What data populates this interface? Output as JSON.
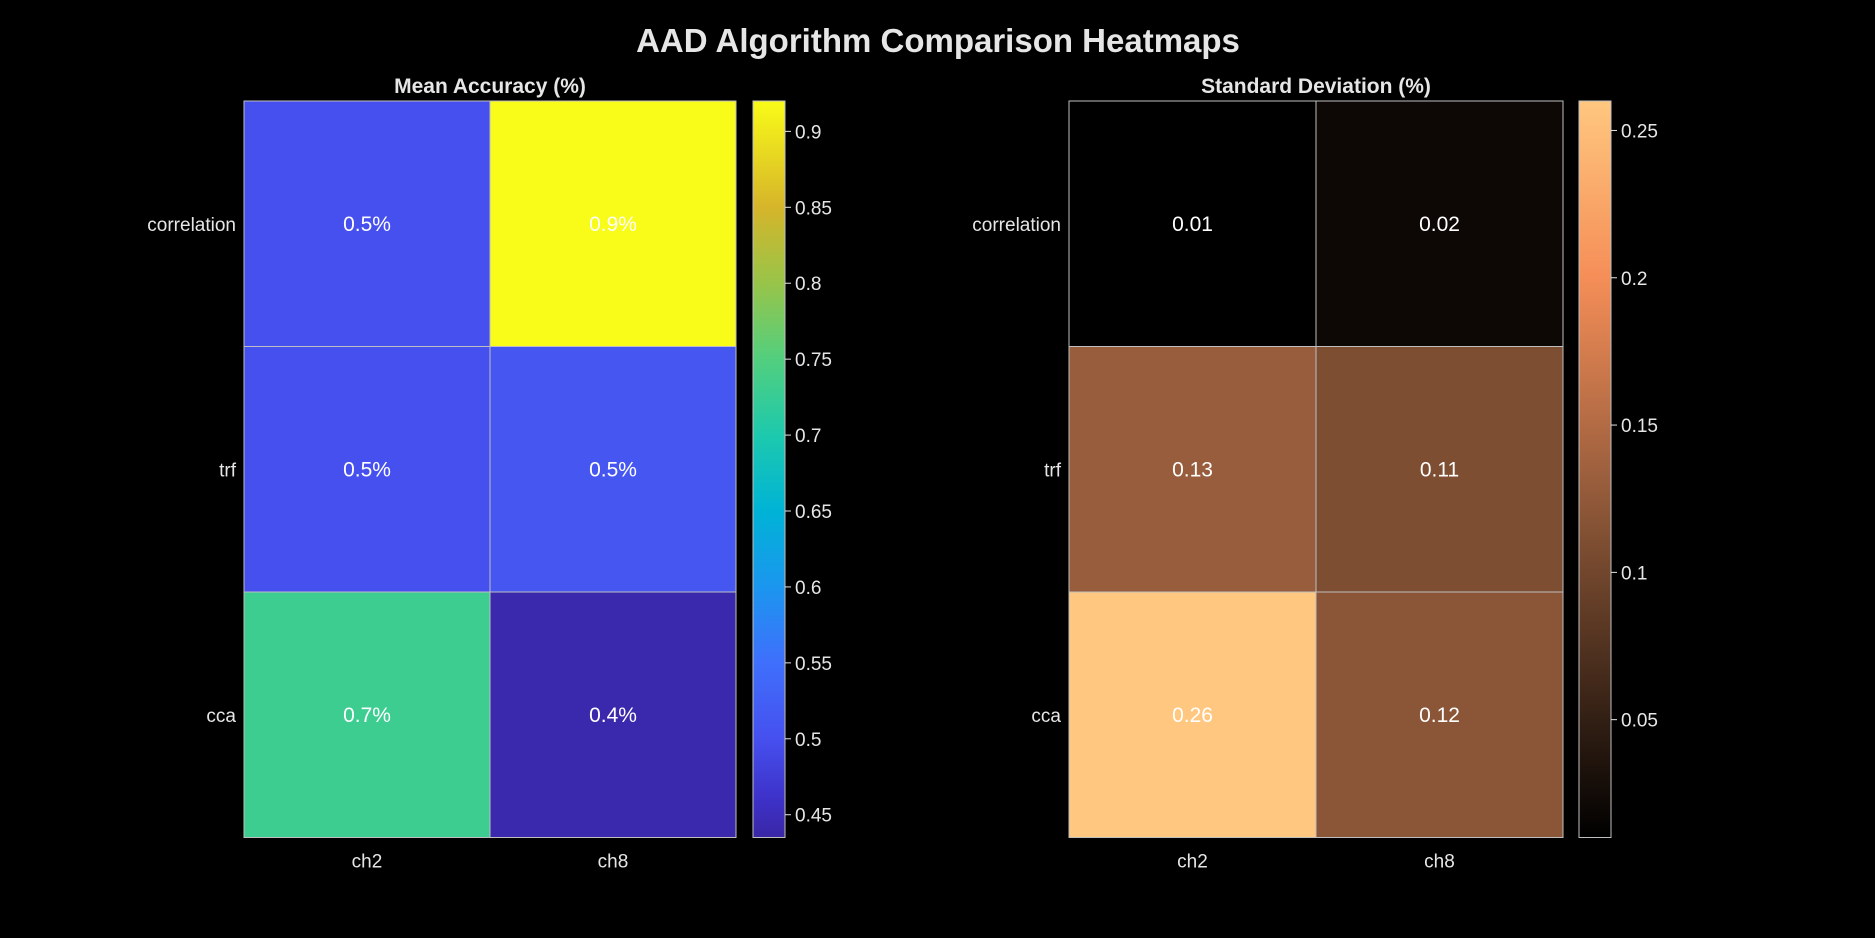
{
  "figure": {
    "title": "AAD Algorithm Comparison Heatmaps",
    "background": "#000000",
    "text_color": "#e6e6e6",
    "grid_line_color": "#bfbfbf"
  },
  "chart_data": [
    {
      "type": "heatmap",
      "title": "Mean Accuracy (%)",
      "rows": [
        "correlation",
        "trf",
        "cca"
      ],
      "columns": [
        "ch2",
        "ch8"
      ],
      "values": [
        [
          0.5,
          0.92
        ],
        [
          0.5,
          0.51
        ],
        [
          0.73,
          0.44
        ]
      ],
      "cell_labels": [
        [
          "0.5%",
          "0.9%"
        ],
        [
          "0.5%",
          "0.5%"
        ],
        [
          "0.7%",
          "0.4%"
        ]
      ],
      "colormap": "plasma-like",
      "color_range": [
        0.435,
        0.92
      ],
      "colorbar_ticks": [
        0.45,
        0.5,
        0.55,
        0.6,
        0.65,
        0.7,
        0.75,
        0.8,
        0.85,
        0.9
      ],
      "colorbar_tick_labels": [
        "0.45",
        "0.5",
        "0.55",
        "0.6",
        "0.65",
        "0.7",
        "0.75",
        "0.8",
        "0.85",
        "0.9"
      ],
      "colorbar_stops": [
        {
          "value": 0.435,
          "color": "#3a27a6"
        },
        {
          "value": 0.46,
          "color": "#3d31c8"
        },
        {
          "value": 0.5,
          "color": "#4650ee"
        },
        {
          "value": 0.55,
          "color": "#3f6ffc"
        },
        {
          "value": 0.6,
          "color": "#1b96ef"
        },
        {
          "value": 0.65,
          "color": "#00b3d6"
        },
        {
          "value": 0.7,
          "color": "#1dc9ad"
        },
        {
          "value": 0.75,
          "color": "#52cf7e"
        },
        {
          "value": 0.8,
          "color": "#98c449"
        },
        {
          "value": 0.85,
          "color": "#d6b52a"
        },
        {
          "value": 0.92,
          "color": "#f9fb18"
        }
      ]
    },
    {
      "type": "heatmap",
      "title": "Standard Deviation (%)",
      "rows": [
        "correlation",
        "trf",
        "cca"
      ],
      "columns": [
        "ch2",
        "ch8"
      ],
      "values": [
        [
          0.01,
          0.02
        ],
        [
          0.13,
          0.11
        ],
        [
          0.26,
          0.12
        ]
      ],
      "cell_labels": [
        [
          "0.01",
          "0.02"
        ],
        [
          "0.13",
          "0.11"
        ],
        [
          "0.26",
          "0.12"
        ]
      ],
      "colormap": "copper",
      "color_range": [
        0.01,
        0.26
      ],
      "colorbar_ticks": [
        0.05,
        0.1,
        0.15,
        0.2,
        0.25
      ],
      "colorbar_tick_labels": [
        "0.05",
        "0.1",
        "0.15",
        "0.2",
        "0.25"
      ],
      "colorbar_stops": [
        {
          "value": 0.01,
          "color": "#000000"
        },
        {
          "value": 0.11,
          "color": "#7e4e32"
        },
        {
          "value": 0.13,
          "color": "#985d3c"
        },
        {
          "value": 0.2,
          "color": "#f58e58"
        },
        {
          "value": 0.26,
          "color": "#ffc77f"
        }
      ]
    }
  ]
}
